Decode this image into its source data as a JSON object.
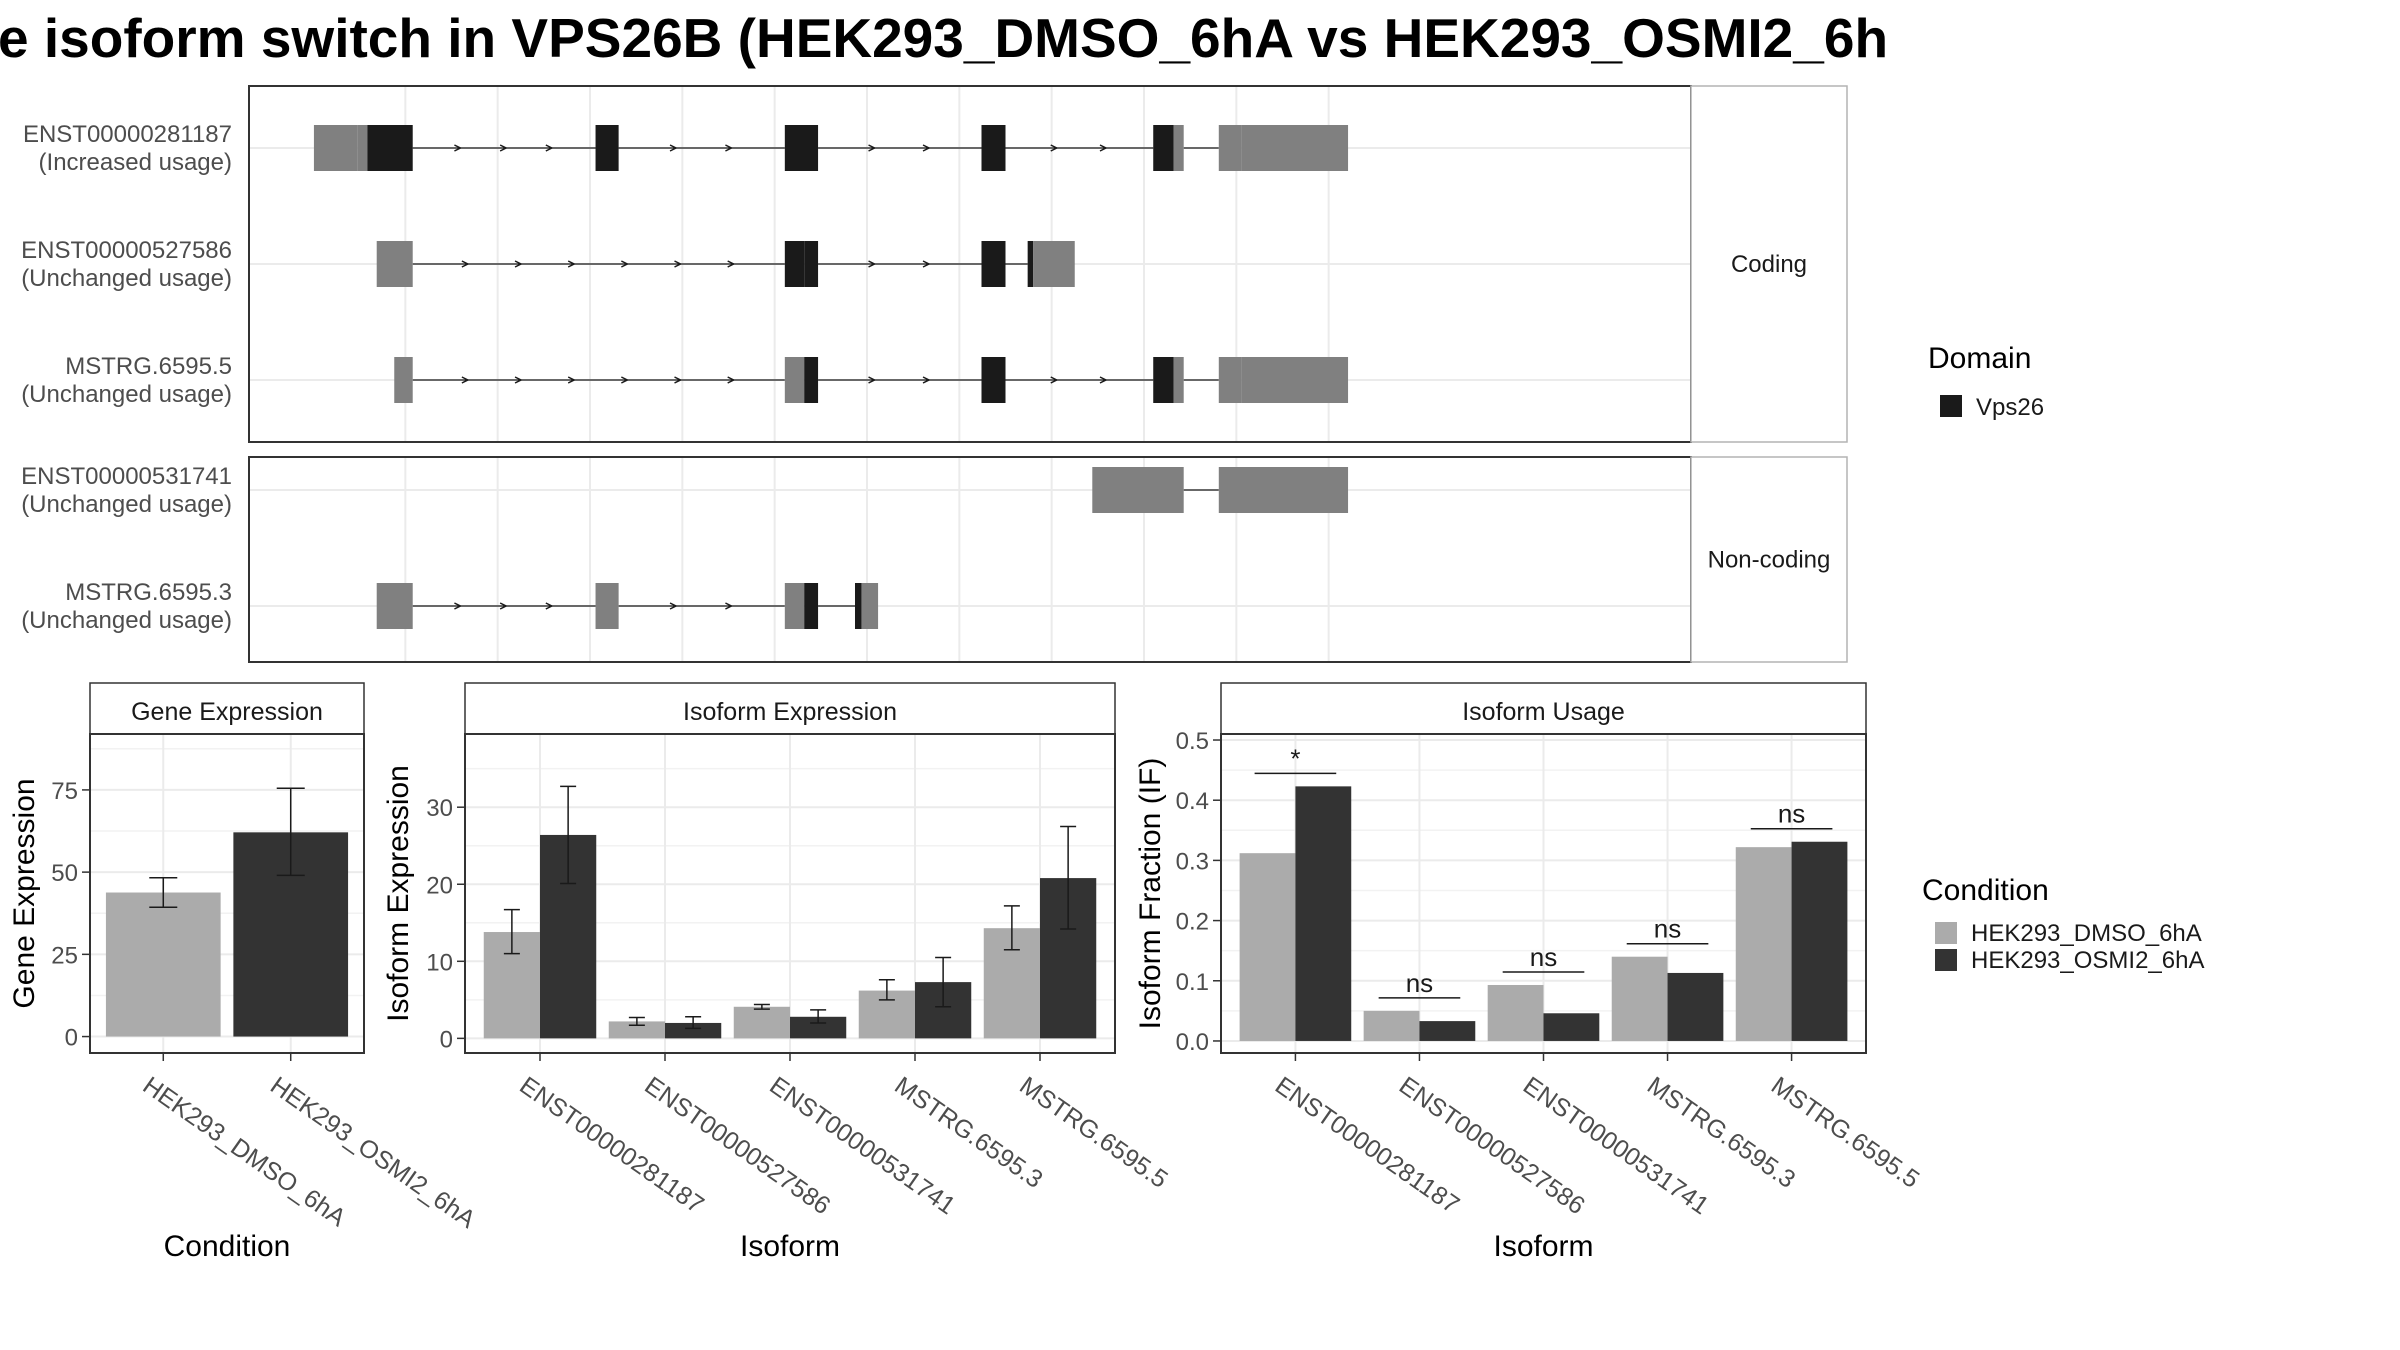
{
  "title": "e isoform switch in VPS26B (HEK293_DMSO_6hA vs HEK293_OSMI2_6h",
  "colors": {
    "utr": "#808080",
    "domain": "#1a1a1a",
    "condition_a": "#ababab",
    "condition_b": "#333333",
    "grid": "#ebebeb",
    "panel_border": "#333333",
    "strip_border": "#b3b3b3"
  },
  "structure": {
    "groups": [
      {
        "label": "Coding",
        "transcripts": [
          {
            "id": "ENST00000281187",
            "usage": "(Increased usage)",
            "exons": [
              [
                1,
                48
              ],
              [
                48,
                59
              ],
              [
                59,
                108
              ],
              [
                306,
                331
              ],
              [
                511,
                547
              ],
              [
                724,
                750
              ],
              [
                910,
                932
              ],
              [
                932,
                943
              ],
              [
                981,
                1006
              ],
              [
                1006,
                1121
              ]
            ],
            "exon_types": [
              "utr",
              "utr",
              "domain",
              "domain",
              "domain",
              "domain",
              "domain",
              "utr",
              "utr",
              "utr"
            ]
          },
          {
            "id": "ENST00000527586",
            "usage": "(Unchanged usage)",
            "exons": [
              [
                69,
                108
              ],
              [
                511,
                532
              ],
              [
                532,
                547
              ],
              [
                724,
                750
              ],
              [
                774,
                780
              ],
              [
                780,
                825
              ]
            ],
            "exon_types": [
              "utr",
              "domain",
              "domain",
              "domain",
              "domain",
              "utr"
            ]
          },
          {
            "id": "MSTRG.6595.5",
            "usage": "(Unchanged usage)",
            "exons": [
              [
                88,
                108
              ],
              [
                511,
                532
              ],
              [
                532,
                547
              ],
              [
                724,
                750
              ],
              [
                910,
                932
              ],
              [
                932,
                943
              ],
              [
                981,
                1006
              ],
              [
                1006,
                1121
              ]
            ],
            "exon_types": [
              "utr",
              "utr",
              "domain",
              "domain",
              "domain",
              "utr",
              "utr",
              "utr"
            ]
          }
        ]
      },
      {
        "label": "Non-coding",
        "transcripts": [
          {
            "id": "ENST00000531741",
            "usage": "(Unchanged usage)",
            "exons": [
              [
                844,
                943
              ],
              [
                981,
                1121
              ]
            ],
            "exon_types": [
              "utr",
              "utr"
            ]
          },
          {
            "id": "MSTRG.6595.3",
            "usage": "(Unchanged usage)",
            "exons": [
              [
                69,
                108
              ],
              [
                306,
                331
              ],
              [
                511,
                532
              ],
              [
                532,
                547
              ],
              [
                587,
                594
              ],
              [
                594,
                612
              ]
            ],
            "exon_types": [
              "utr",
              "utr",
              "utr",
              "domain",
              "domain",
              "utr"
            ]
          }
        ]
      }
    ],
    "legend": {
      "title": "Domain",
      "items": [
        {
          "name": "Vps26",
          "color": "#1a1a1a"
        }
      ]
    }
  },
  "chart_data": [
    {
      "type": "bar",
      "title": "Gene Expression",
      "xlabel": "Condition",
      "ylabel": "Gene Expression",
      "categories": [
        "HEK293_DMSO_6hA",
        "HEK293_OSMI2_6hA"
      ],
      "values": [
        43.8,
        62.1
      ],
      "error": [
        [
          39.3,
          48.3
        ],
        [
          49.0,
          75.5
        ]
      ],
      "ylim": [
        -5,
        92
      ],
      "yticks": [
        0,
        25,
        50,
        75
      ]
    },
    {
      "type": "bar",
      "title": "Isoform Expression",
      "xlabel": "Isoform",
      "ylabel": "Isoform Expression",
      "categories": [
        "ENST00000281187",
        "ENST00000527586",
        "ENST00000531741",
        "MSTRG.6595.3",
        "MSTRG.6595.5"
      ],
      "series": [
        {
          "name": "HEK293_DMSO_6hA",
          "values": [
            13.8,
            2.2,
            4.1,
            6.2,
            14.3
          ],
          "error": [
            [
              11.0,
              16.7
            ],
            [
              1.7,
              2.7
            ],
            [
              3.8,
              4.4
            ],
            [
              5.0,
              7.6
            ],
            [
              11.5,
              17.2
            ]
          ]
        },
        {
          "name": "HEK293_OSMI2_6hA",
          "values": [
            26.4,
            2.0,
            2.8,
            7.3,
            20.8
          ],
          "error": [
            [
              20.1,
              32.7
            ],
            [
              1.3,
              2.8
            ],
            [
              2.0,
              3.7
            ],
            [
              4.1,
              10.5
            ],
            [
              14.2,
              27.5
            ]
          ]
        }
      ],
      "ylim": [
        -1.9,
        39.5
      ],
      "yticks": [
        0,
        10,
        20,
        30
      ]
    },
    {
      "type": "bar",
      "title": "Isoform Usage",
      "xlabel": "Isoform",
      "ylabel": "Isoform Fraction (IF)",
      "categories": [
        "ENST00000281187",
        "ENST00000527586",
        "ENST00000531741",
        "MSTRG.6595.3",
        "MSTRG.6595.5"
      ],
      "series": [
        {
          "name": "HEK293_DMSO_6hA",
          "values": [
            0.312,
            0.05,
            0.093,
            0.14,
            0.322
          ]
        },
        {
          "name": "HEK293_OSMI2_6hA",
          "values": [
            0.423,
            0.033,
            0.046,
            0.113,
            0.331
          ]
        }
      ],
      "significance": [
        "*",
        "ns",
        "ns",
        "ns",
        "ns"
      ],
      "ylim": [
        -0.02,
        0.51
      ],
      "yticks": [
        0.0,
        0.1,
        0.2,
        0.3,
        0.4,
        0.5
      ]
    }
  ],
  "condition_legend": {
    "title": "Condition",
    "items": [
      {
        "name": "HEK293_DMSO_6hA",
        "color": "#ababab"
      },
      {
        "name": "HEK293_OSMI2_6hA",
        "color": "#333333"
      }
    ]
  }
}
